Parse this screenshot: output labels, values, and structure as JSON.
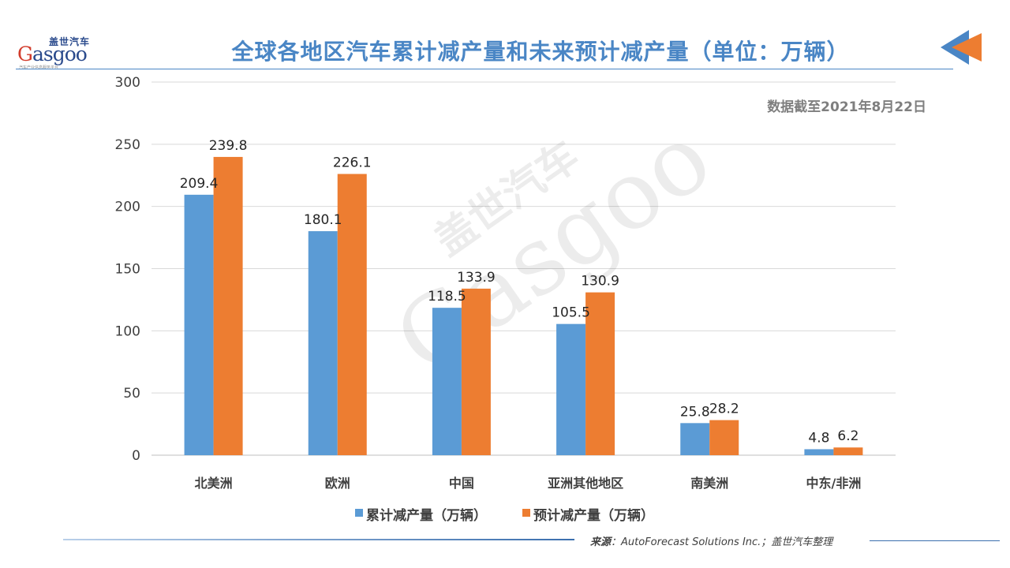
{
  "header": {
    "title": "全球各地区汽车累计减产量和未来预计减产量（单位：万辆）",
    "date_note": "数据截至2021年8月22日"
  },
  "logo": {
    "cn": "盖世汽车",
    "en_initial": "G",
    "en_rest": "asgoo",
    "tagline": "汽车产业信息服务平台"
  },
  "chart_data": {
    "type": "bar",
    "categories": [
      "北美洲",
      "欧洲",
      "中国",
      "亚洲其他地区",
      "南美洲",
      "中东/非洲"
    ],
    "series": [
      {
        "name": "累计减产量（万辆）",
        "values": [
          209.4,
          180.1,
          118.5,
          105.5,
          25.8,
          4.8
        ],
        "color": "#5b9bd5"
      },
      {
        "name": "预计减产量（万辆）",
        "values": [
          239.8,
          226.1,
          133.9,
          130.9,
          28.2,
          6.2
        ],
        "color": "#ed7d31"
      }
    ],
    "ylim": [
      0,
      300
    ],
    "yticks": [
      0,
      50,
      100,
      150,
      200,
      250,
      300
    ],
    "grid": true,
    "legend": "bottom"
  },
  "footer": {
    "source_label": "来源",
    "source_text": "：AutoForecast Solutions Inc.；盖世汽车整理"
  },
  "colors": {
    "title": "#4a86c5",
    "accent_orange": "#ed7d31",
    "accent_blue": "#5b9bd5"
  }
}
